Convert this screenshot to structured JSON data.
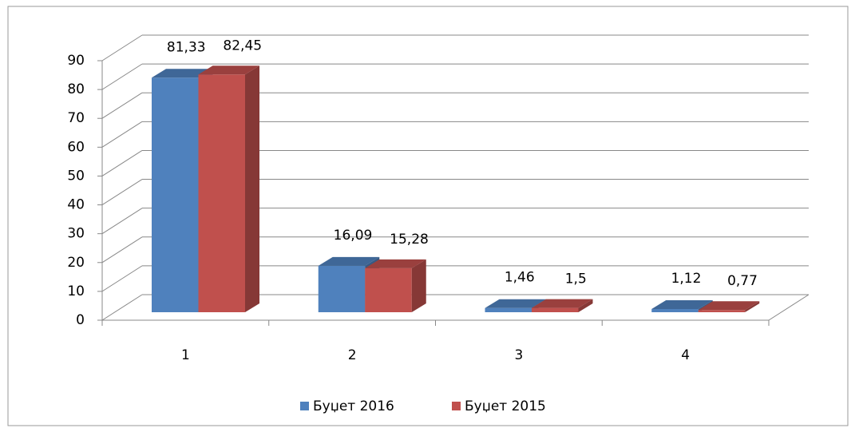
{
  "chart_data": {
    "type": "bar3d",
    "categories": [
      "1",
      "2",
      "3",
      "4"
    ],
    "series": [
      {
        "name": "Буџет 2016",
        "color": "#4f81bd",
        "values": [
          81.33,
          16.09,
          1.46,
          1.12
        ],
        "value_labels": [
          "81,33",
          "16,09",
          "1,46",
          "1,12"
        ]
      },
      {
        "name": "Буџет 2015",
        "color": "#c0504d",
        "values": [
          82.45,
          15.28,
          1.5,
          0.77
        ],
        "value_labels": [
          "82,45",
          "15,28",
          "1,5",
          "0,77"
        ]
      }
    ],
    "ylim": [
      0,
      90
    ],
    "yticks": [
      0,
      10,
      20,
      30,
      40,
      50,
      60,
      70,
      80,
      90
    ],
    "grid": true,
    "legend": "bottom"
  }
}
